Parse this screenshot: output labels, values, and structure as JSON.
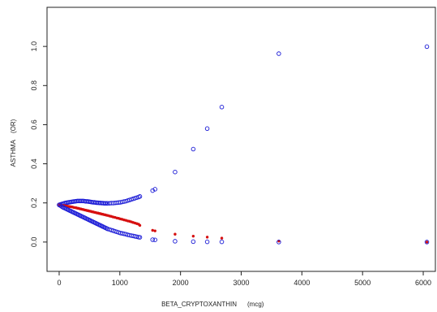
{
  "chart_data": {
    "type": "scatter",
    "title": "",
    "xlabel": "BETA_CRYPTOXANTHIN",
    "xlabel_unit": "(mcg)",
    "ylabel": "ASTHMA",
    "ylabel_unit": "(OR)",
    "xlim": [
      -200,
      6200
    ],
    "ylim": [
      -0.15,
      1.2
    ],
    "x_ticks": [
      0,
      1000,
      2000,
      3000,
      4000,
      5000,
      6000
    ],
    "y_ticks": [
      0.0,
      0.2,
      0.4,
      0.6,
      0.8,
      1.0
    ],
    "y_tick_labels": [
      "0.0",
      "0.2",
      "0.4",
      "0.6",
      "0.8",
      "1.0"
    ],
    "grid": false,
    "legend": "none",
    "colors": {
      "upper": "#1a1ad6",
      "estimate": "#d60f0f",
      "lower": "#1a1ad6",
      "axis": "#222222"
    },
    "series": [
      {
        "role": "upper",
        "marker": "open-circle",
        "x": [
          0,
          20,
          40,
          60,
          80,
          100,
          120,
          140,
          160,
          180,
          200,
          220,
          240,
          260,
          280,
          300,
          320,
          340,
          360,
          380,
          400,
          420,
          440,
          460,
          480,
          500,
          520,
          540,
          560,
          580,
          600,
          620,
          640,
          660,
          680,
          700,
          720,
          740,
          760,
          780,
          800,
          830,
          860,
          890,
          920,
          950,
          980,
          1010,
          1040,
          1070,
          1100,
          1130,
          1160,
          1190,
          1220,
          1250,
          1280,
          1310,
          1330,
          1540,
          1580,
          1910,
          2210,
          2440,
          2680,
          3620,
          6060
        ],
        "y": [
          0.19,
          0.192,
          0.194,
          0.196,
          0.198,
          0.2,
          0.201,
          0.202,
          0.203,
          0.204,
          0.205,
          0.206,
          0.207,
          0.208,
          0.209,
          0.21,
          0.21,
          0.21,
          0.21,
          0.21,
          0.21,
          0.209,
          0.208,
          0.208,
          0.207,
          0.206,
          0.205,
          0.204,
          0.203,
          0.203,
          0.202,
          0.201,
          0.201,
          0.2,
          0.2,
          0.199,
          0.199,
          0.198,
          0.198,
          0.198,
          0.198,
          0.198,
          0.199,
          0.199,
          0.2,
          0.201,
          0.202,
          0.203,
          0.205,
          0.207,
          0.209,
          0.212,
          0.215,
          0.218,
          0.221,
          0.224,
          0.227,
          0.23,
          0.233,
          0.263,
          0.27,
          0.358,
          0.475,
          0.58,
          0.69,
          0.963,
          0.999
        ]
      },
      {
        "role": "estimate",
        "marker": "filled-circle",
        "x": [
          0,
          20,
          40,
          60,
          80,
          100,
          120,
          140,
          160,
          180,
          200,
          220,
          240,
          260,
          280,
          300,
          320,
          340,
          360,
          380,
          400,
          420,
          440,
          460,
          480,
          500,
          520,
          540,
          560,
          580,
          600,
          620,
          640,
          660,
          680,
          700,
          720,
          740,
          760,
          780,
          800,
          830,
          860,
          890,
          920,
          950,
          980,
          1010,
          1040,
          1070,
          1100,
          1130,
          1160,
          1190,
          1220,
          1250,
          1280,
          1310,
          1330,
          1540,
          1580,
          1910,
          2210,
          2440,
          2680,
          3620,
          6060
        ],
        "y": [
          0.19,
          0.189,
          0.188,
          0.187,
          0.186,
          0.185,
          0.184,
          0.183,
          0.182,
          0.181,
          0.18,
          0.179,
          0.177,
          0.176,
          0.175,
          0.173,
          0.172,
          0.17,
          0.169,
          0.167,
          0.166,
          0.164,
          0.163,
          0.161,
          0.16,
          0.158,
          0.157,
          0.155,
          0.154,
          0.152,
          0.151,
          0.149,
          0.148,
          0.146,
          0.145,
          0.143,
          0.142,
          0.14,
          0.139,
          0.137,
          0.136,
          0.133,
          0.131,
          0.128,
          0.126,
          0.123,
          0.121,
          0.118,
          0.116,
          0.113,
          0.111,
          0.108,
          0.106,
          0.103,
          0.1,
          0.097,
          0.094,
          0.091,
          0.085,
          0.06,
          0.057,
          0.04,
          0.03,
          0.025,
          0.02,
          0.005,
          0.0
        ]
      },
      {
        "role": "lower",
        "marker": "open-circle",
        "x": [
          0,
          20,
          40,
          60,
          80,
          100,
          120,
          140,
          160,
          180,
          200,
          220,
          240,
          260,
          280,
          300,
          320,
          340,
          360,
          380,
          400,
          420,
          440,
          460,
          480,
          500,
          520,
          540,
          560,
          580,
          600,
          620,
          640,
          660,
          680,
          700,
          720,
          740,
          760,
          780,
          800,
          830,
          860,
          890,
          920,
          950,
          980,
          1010,
          1040,
          1070,
          1100,
          1130,
          1160,
          1190,
          1220,
          1250,
          1280,
          1310,
          1330,
          1540,
          1580,
          1910,
          2210,
          2440,
          2680,
          3620,
          6060
        ],
        "y": [
          0.19,
          0.186,
          0.182,
          0.178,
          0.175,
          0.172,
          0.169,
          0.166,
          0.163,
          0.16,
          0.157,
          0.154,
          0.151,
          0.148,
          0.145,
          0.142,
          0.139,
          0.136,
          0.133,
          0.13,
          0.127,
          0.124,
          0.121,
          0.118,
          0.115,
          0.112,
          0.109,
          0.106,
          0.103,
          0.1,
          0.097,
          0.094,
          0.091,
          0.088,
          0.085,
          0.082,
          0.079,
          0.076,
          0.073,
          0.07,
          0.067,
          0.064,
          0.061,
          0.058,
          0.055,
          0.052,
          0.049,
          0.046,
          0.044,
          0.042,
          0.04,
          0.037,
          0.035,
          0.033,
          0.031,
          0.029,
          0.027,
          0.025,
          0.024,
          0.012,
          0.011,
          0.004,
          0.002,
          0.001,
          0.001,
          0.0,
          0.0
        ]
      }
    ]
  }
}
